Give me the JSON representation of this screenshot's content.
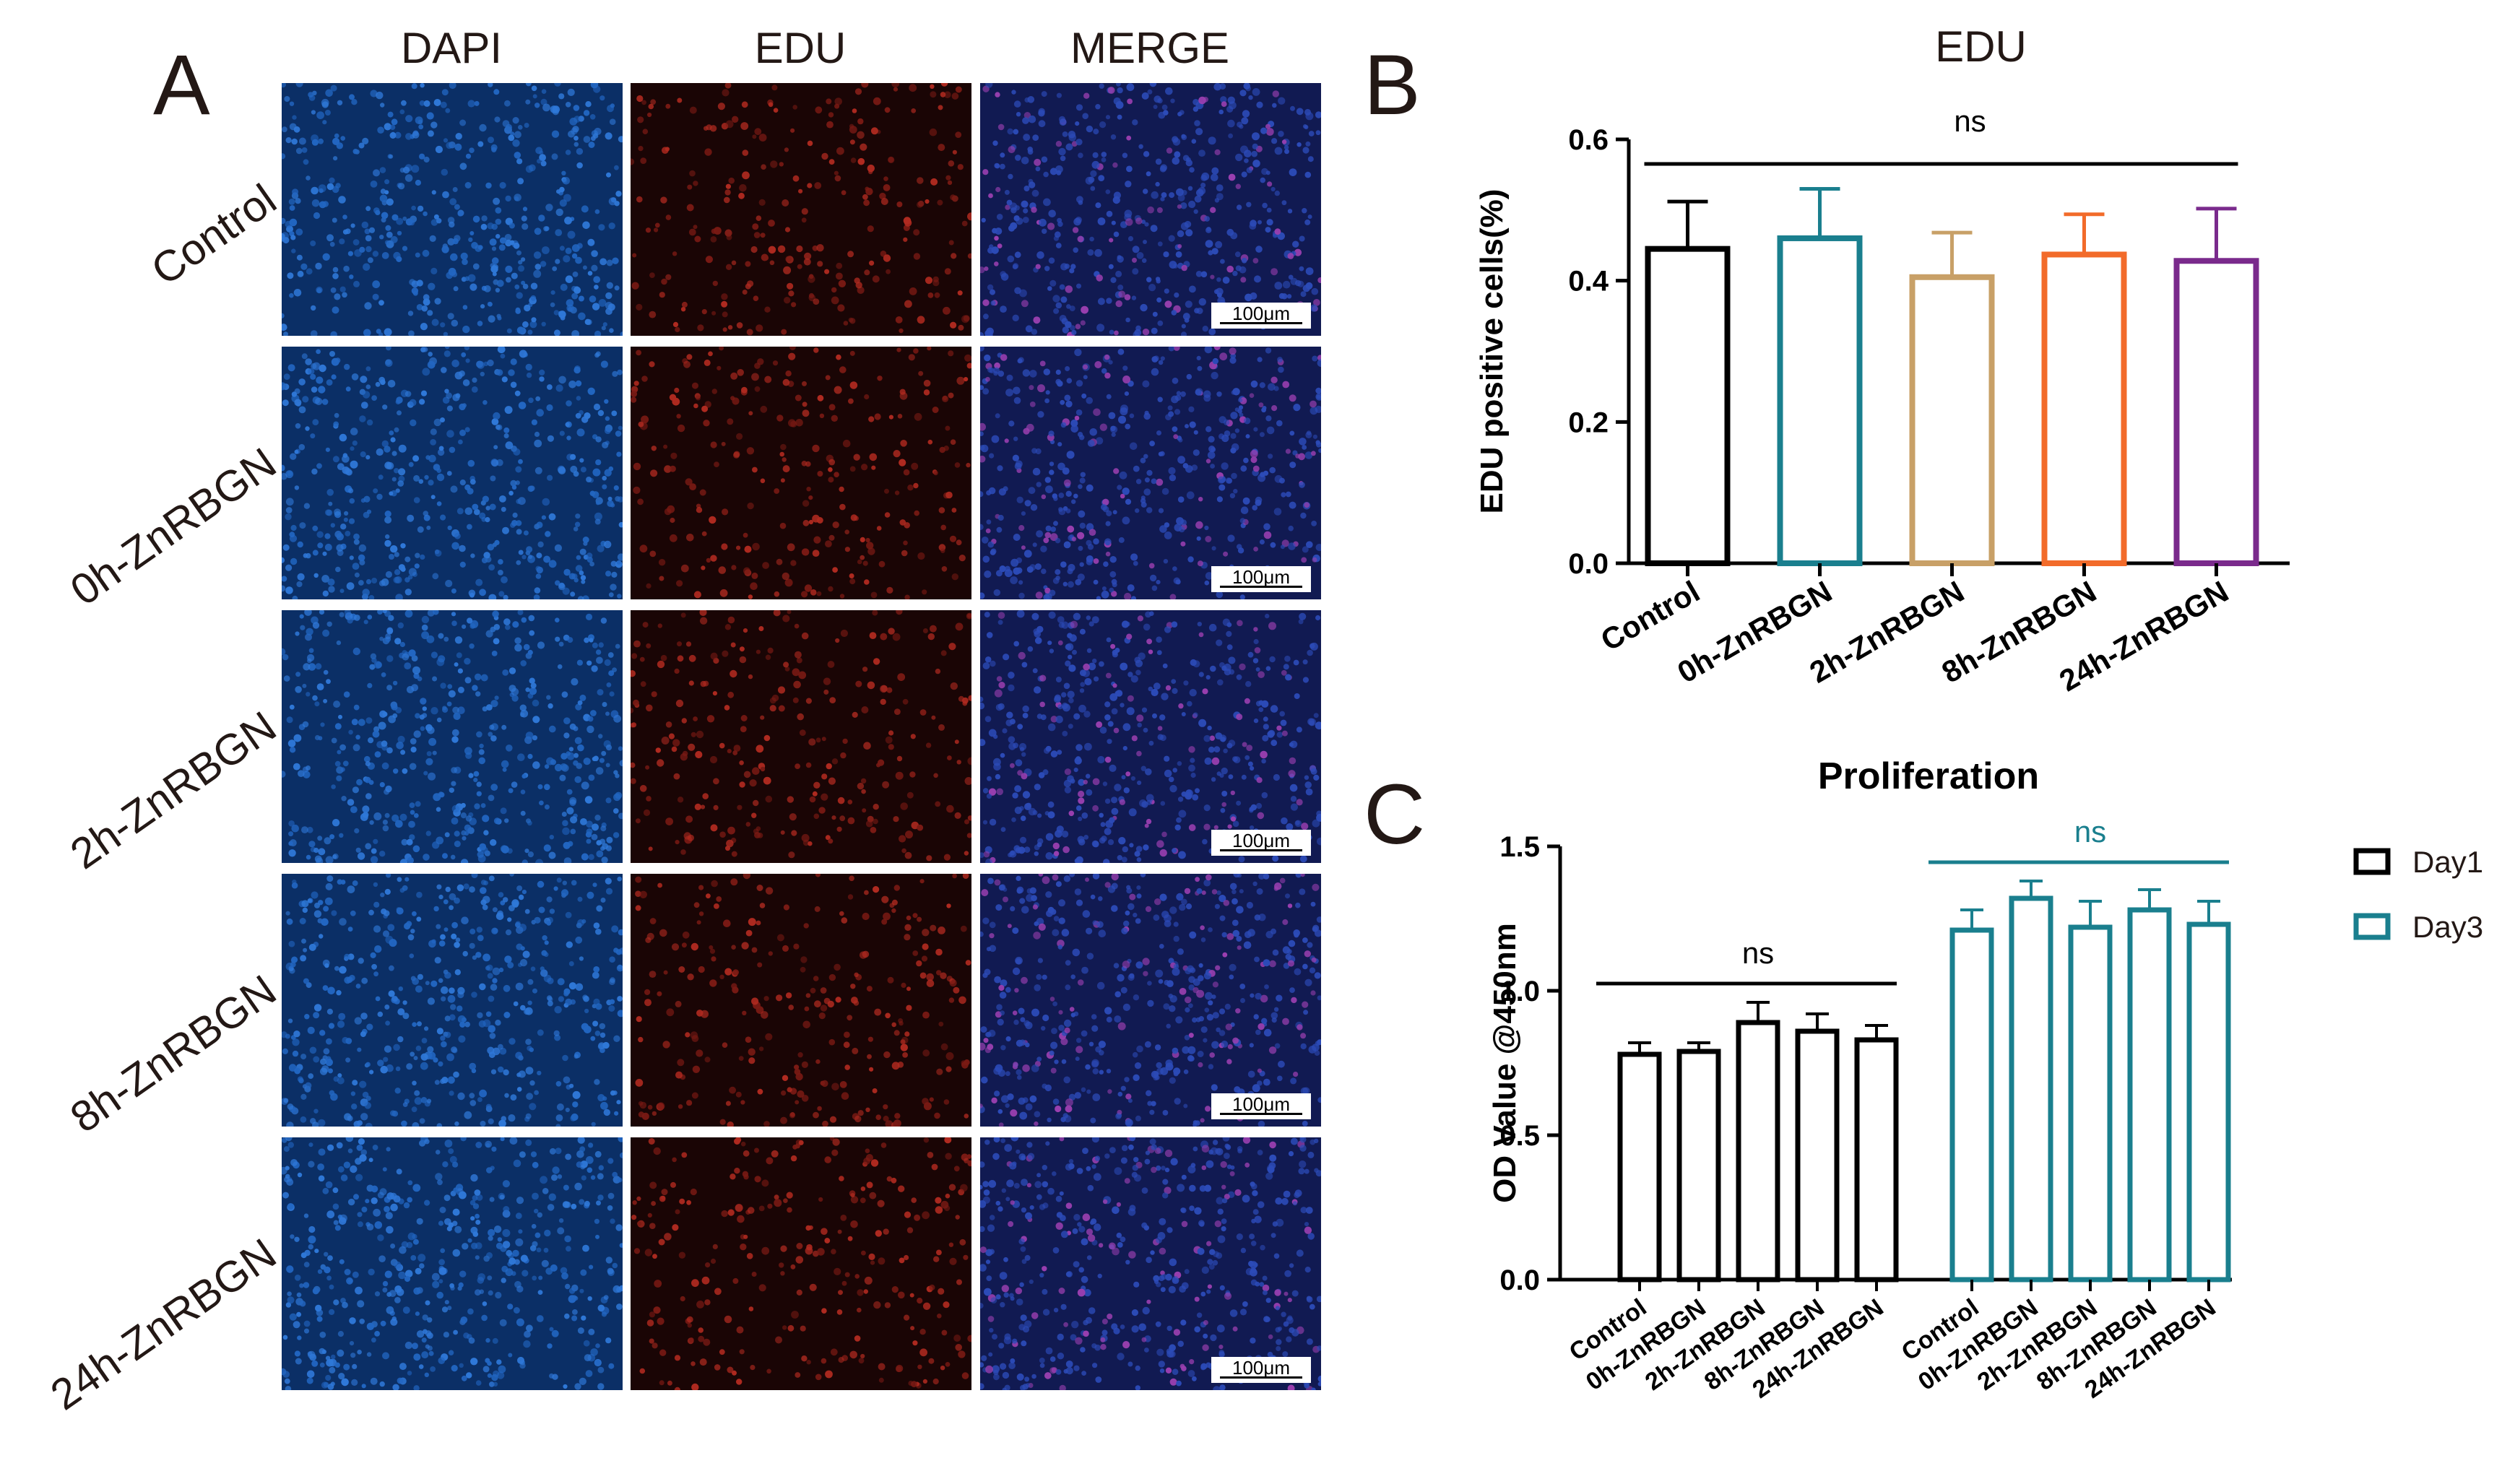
{
  "panels": {
    "a": {
      "letter": "A",
      "columns": [
        "DAPI",
        "EDU",
        "MERGE"
      ],
      "rows": [
        "Control",
        "0h-ZnRBGN",
        "2h-ZnRBGN",
        "8h-ZnRBGN",
        "24h-ZnRBGN"
      ],
      "scale_bar_label": "100μm"
    },
    "b": {
      "letter": "B"
    },
    "c": {
      "letter": "C"
    }
  },
  "chart_data": [
    {
      "type": "bar",
      "title": "EDU",
      "ylabel": "EDU positive cells(%)",
      "xlabel": "",
      "ylim": [
        0,
        0.6
      ],
      "yticks": [
        0.0,
        0.2,
        0.4,
        0.6
      ],
      "ytick_labels": [
        "0.0",
        "0.2",
        "0.4",
        "0.6"
      ],
      "categories": [
        "Control",
        "0h-ZnRBGN",
        "2h-ZnRBGN",
        "8h-ZnRBGN",
        "24h-ZnRBGN"
      ],
      "values": [
        0.445,
        0.46,
        0.405,
        0.437,
        0.428
      ],
      "errors": [
        0.067,
        0.07,
        0.063,
        0.057,
        0.074
      ],
      "colors": [
        "#000000",
        "#1a7f8e",
        "#c8a067",
        "#f26b2a",
        "#7a2a8c"
      ],
      "annotation": "ns",
      "annotation_color": "#000000"
    },
    {
      "type": "bar",
      "title": "Proliferation",
      "ylabel": "OD Value @450nm",
      "xlabel": "",
      "ylim": [
        0,
        1.5
      ],
      "yticks": [
        0.0,
        0.5,
        1.0,
        1.5
      ],
      "ytick_labels": [
        "0.0",
        "0.5",
        "1.0",
        "1.5"
      ],
      "categories": [
        "Control",
        "0h-ZnRBGN",
        "2h-ZnRBGN",
        "8h-ZnRBGN",
        "24h-ZnRBGN"
      ],
      "series": [
        {
          "name": "Day1",
          "color": "#000000",
          "values": [
            0.78,
            0.79,
            0.89,
            0.86,
            0.83
          ],
          "errors": [
            0.04,
            0.03,
            0.07,
            0.06,
            0.05
          ],
          "annotation": "ns"
        },
        {
          "name": "Day3",
          "color": "#1a7f8e",
          "values": [
            1.21,
            1.32,
            1.22,
            1.28,
            1.23
          ],
          "errors": [
            0.07,
            0.06,
            0.09,
            0.07,
            0.08
          ],
          "annotation": "ns"
        }
      ],
      "legend": "right"
    }
  ]
}
